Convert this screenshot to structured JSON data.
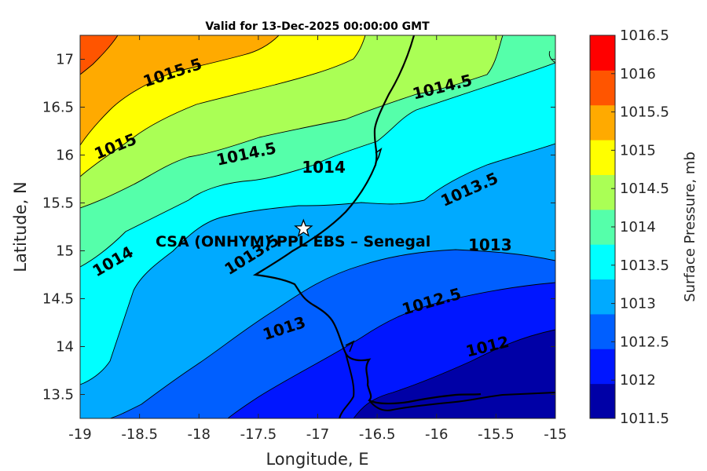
{
  "title": "Valid for 13-Dec-2025 00:00:00 GMT",
  "xlabel": "Longitude, E",
  "ylabel": "Latitude, N",
  "colorbar_label": "Surface Pressure, mb",
  "station_label": "CSA (ONHYM) PPL EBS  – Senegal",
  "station_location": {
    "lon": -17.12,
    "lat": 15.23
  },
  "chart_data": {
    "type": "contour-map",
    "xlim": [
      -19,
      -15
    ],
    "ylim": [
      13.25,
      17.25
    ],
    "x_ticks": [
      -19,
      -18.5,
      -18,
      -17.5,
      -17,
      -16.5,
      -16,
      -15.5,
      -15
    ],
    "y_ticks": [
      13.5,
      14,
      14.5,
      15,
      15.5,
      16,
      16.5,
      17
    ],
    "x_tick_labels": [
      "-19",
      "-18.5",
      "-18",
      "-17.5",
      "-17",
      "-16.5",
      "-16",
      "-15.5",
      "-15"
    ],
    "y_tick_labels": [
      "13.5",
      "14",
      "14.5",
      "15",
      "15.5",
      "16",
      "16.5",
      "17"
    ],
    "contour_levels": [
      1011.5,
      1012,
      1012.5,
      1013,
      1013.5,
      1014,
      1014.5,
      1015,
      1015.5,
      1016,
      1016.5
    ],
    "colorbar_colors": [
      "#0000a6",
      "#0016ff",
      "#005fff",
      "#00aaff",
      "#00ffff",
      "#55ffaa",
      "#aaff55",
      "#ffff00",
      "#ffaa00",
      "#ff5500",
      "#ff0000"
    ],
    "colorbar_labels": [
      "1011.5",
      "1012",
      "1012.5",
      "1013",
      "1013.5",
      "1014",
      "1014.5",
      "1015",
      "1015.5",
      "1016",
      "1016.5"
    ],
    "contour_labels": [
      {
        "text": "1015.5",
        "lon": -18.22,
        "lat": 16.85,
        "angle": -18
      },
      {
        "text": "1014.5",
        "lon": -15.95,
        "lat": 16.7,
        "angle": -14
      },
      {
        "text": "1015",
        "lon": -18.7,
        "lat": 16.08,
        "angle": -22
      },
      {
        "text": "1014.5",
        "lon": -17.6,
        "lat": 16.0,
        "angle": -12
      },
      {
        "text": "1014",
        "lon": -16.95,
        "lat": 15.86,
        "angle": 0
      },
      {
        "text": "1013.5",
        "lon": -15.72,
        "lat": 15.63,
        "angle": -24
      },
      {
        "text": "1014",
        "lon": -18.72,
        "lat": 14.88,
        "angle": -30
      },
      {
        "text": "1013.5",
        "lon": -17.55,
        "lat": 14.95,
        "angle": -32
      },
      {
        "text": "1013",
        "lon": -15.55,
        "lat": 15.05,
        "angle": 0
      },
      {
        "text": "1012.5",
        "lon": -16.04,
        "lat": 14.46,
        "angle": -16
      },
      {
        "text": "1013",
        "lon": -17.28,
        "lat": 14.18,
        "angle": -18
      },
      {
        "text": "1012",
        "lon": -15.57,
        "lat": 13.99,
        "angle": -14
      }
    ]
  }
}
